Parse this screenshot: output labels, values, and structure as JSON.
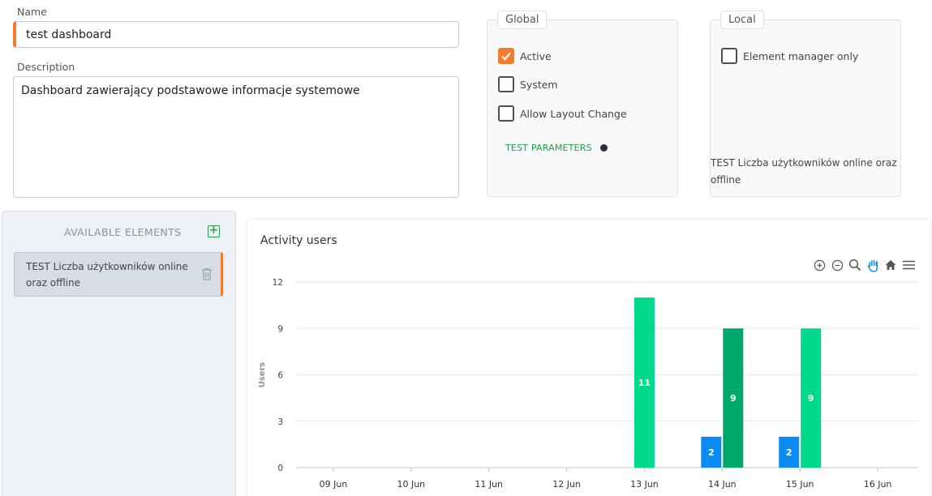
{
  "form": {
    "name_label": "Name",
    "name_value": "test dashboard",
    "description_label": "Description",
    "description_value": "Dashboard zawierający podstawowe informacje systemowe"
  },
  "global": {
    "legend": "Global",
    "checkboxes": [
      {
        "label": "Active",
        "checked": true
      },
      {
        "label": "System",
        "checked": false
      },
      {
        "label": "Allow Layout Change",
        "checked": false
      }
    ],
    "test_parameters": "TEST PARAMETERS"
  },
  "local": {
    "legend": "Local",
    "checkbox_label": "Element manager only",
    "element_text": "TEST Liczba użytkowników online oraz offline"
  },
  "sidebar": {
    "title": "AVAILABLE ELEMENTS",
    "items": [
      {
        "label": "TEST Liczba użytkowników online oraz offline"
      }
    ]
  },
  "colors": {
    "accent": "#f57c2b",
    "blue": "#0d8bf0",
    "green_light": "#00d98b",
    "green_dark": "#00a86b"
  },
  "chart_data": {
    "type": "bar",
    "title": "Activity users",
    "ylabel": "Users",
    "xlabel": "",
    "ylim": [
      0,
      12
    ],
    "yticks": [
      0,
      3,
      6,
      9,
      12
    ],
    "categories": [
      "09 Jun",
      "10 Jun",
      "11 Jun",
      "12 Jun",
      "13 Jun",
      "14 Jun",
      "15 Jun",
      "16 Jun"
    ],
    "series": [
      {
        "color": "#0d8bf0",
        "values": [
          0,
          0,
          0,
          0,
          0,
          2,
          2,
          0
        ]
      },
      {
        "color": "#00d98b",
        "values": [
          0,
          0,
          0,
          0,
          11,
          0,
          9,
          0
        ]
      },
      {
        "color": "#00a86b",
        "values": [
          0,
          0,
          0,
          0,
          0,
          9,
          0,
          0
        ]
      }
    ],
    "grid": true
  }
}
